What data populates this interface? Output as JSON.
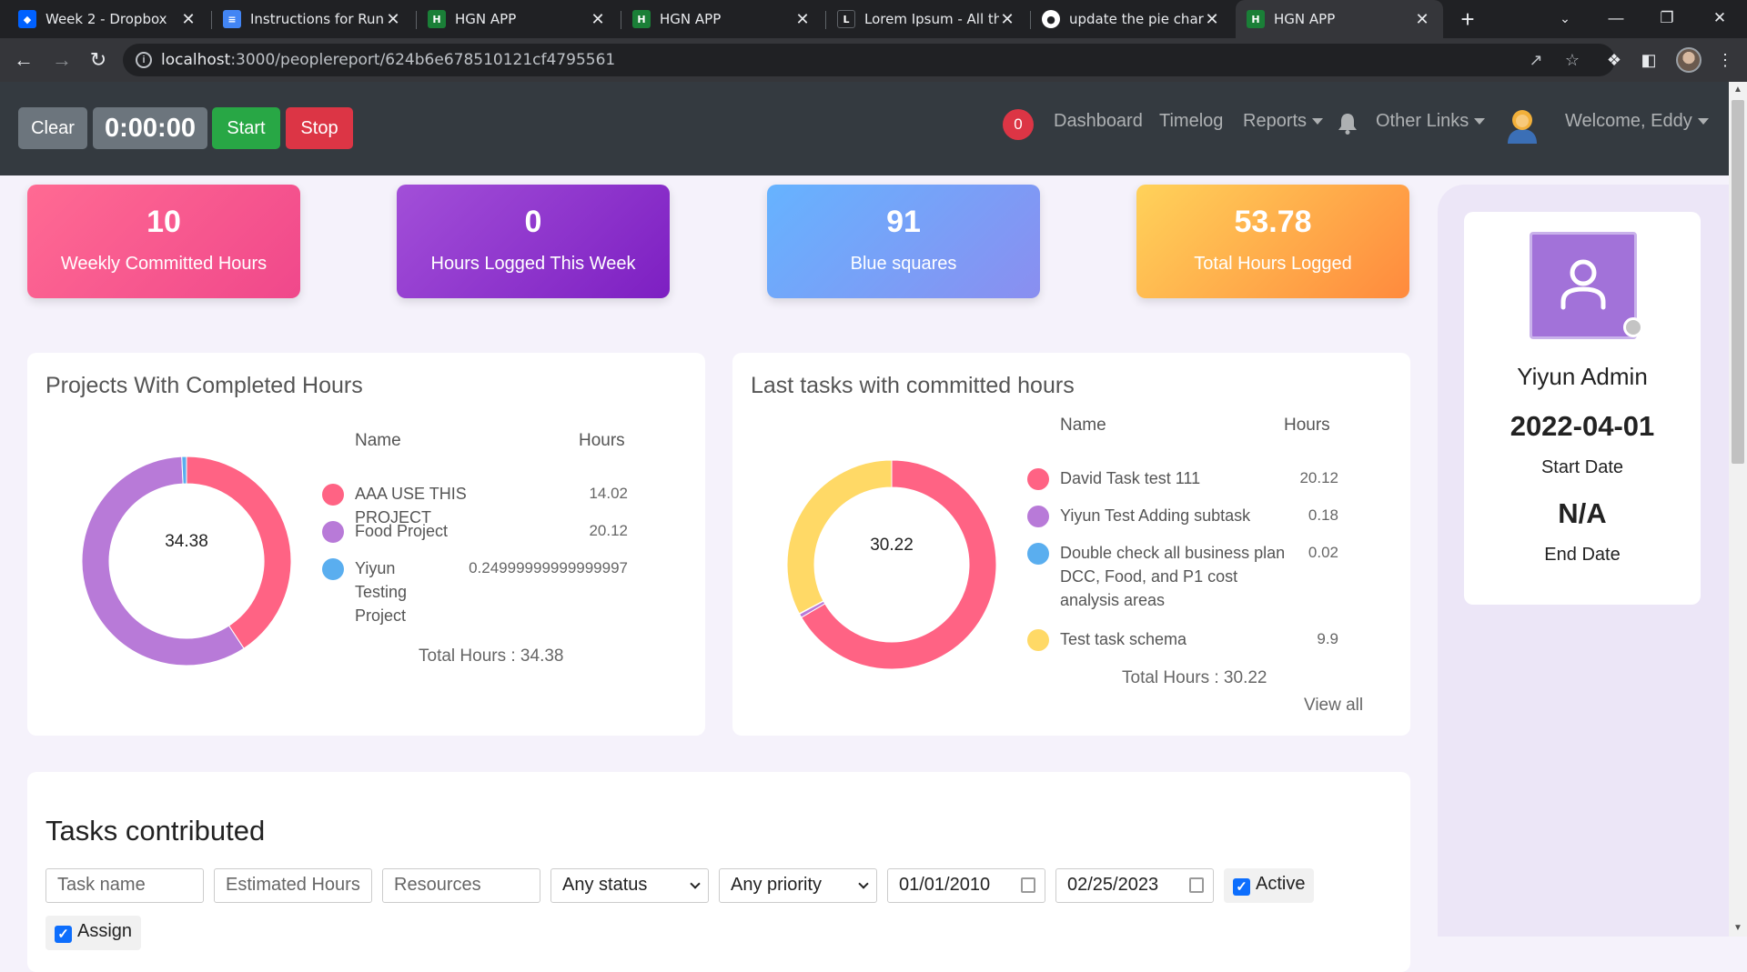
{
  "browser": {
    "tabs": [
      {
        "title": "Week 2 - Dropbox",
        "favicon": "dropbox-icon",
        "color": "#0061ff"
      },
      {
        "title": "Instructions for Runni",
        "favicon": "google-docs-icon",
        "color": "#4285f4"
      },
      {
        "title": "HGN APP",
        "favicon": "hgn-icon",
        "color": "#1a7f37"
      },
      {
        "title": "HGN APP",
        "favicon": "hgn-icon",
        "color": "#1a7f37"
      },
      {
        "title": "Lorem Ipsum - All the",
        "favicon": "lipsum-icon",
        "color": "#202124"
      },
      {
        "title": "update the pie chart c",
        "favicon": "github-icon",
        "color": "#ffffff"
      },
      {
        "title": "HGN APP",
        "favicon": "hgn-icon",
        "color": "#1a7f37"
      }
    ],
    "url_host": "localhost",
    "url_path": ":3000/peoplereport/624b6e678510121cf4795561"
  },
  "navbar": {
    "clear_label": "Clear",
    "timer": "0:00:00",
    "start_label": "Start",
    "stop_label": "Stop",
    "notification_count": "0",
    "links": {
      "dashboard": "Dashboard",
      "timelog": "Timelog",
      "reports": "Reports",
      "other_links": "Other Links",
      "welcome": "Welcome, Eddy"
    }
  },
  "stats": [
    {
      "value": "10",
      "label": "Weekly Committed Hours"
    },
    {
      "value": "0",
      "label": "Hours Logged This Week"
    },
    {
      "value": "91",
      "label": "Blue squares"
    },
    {
      "value": "53.78",
      "label": "Total Hours Logged"
    }
  ],
  "projects_panel": {
    "title": "Projects With Completed Hours",
    "col_name": "Name",
    "col_hours": "Hours",
    "center": "34.38",
    "items": [
      {
        "name": "AAA USE THIS PROJECT",
        "hours": "14.02",
        "value": 14.02,
        "color": "#ff6384"
      },
      {
        "name": "Food Project",
        "hours": "20.12",
        "value": 20.12,
        "color": "#b87ad8"
      },
      {
        "name": "Yiyun Testing Project",
        "hours": "0.24999999999999997",
        "value": 0.25,
        "color": "#5aaeef"
      }
    ],
    "total": "Total Hours : 34.38"
  },
  "tasks_panel": {
    "title": "Last tasks with committed hours",
    "col_name": "Name",
    "col_hours": "Hours",
    "center": "30.22",
    "items": [
      {
        "name": "David Task test 111",
        "hours": "20.12",
        "value": 20.12,
        "color": "#ff6384"
      },
      {
        "name": "Yiyun Test Adding subtask",
        "hours": "0.18",
        "value": 0.18,
        "color": "#b87ad8"
      },
      {
        "name": "Double check all business plan DCC, Food, and P1 cost analysis areas",
        "hours": "0.02",
        "value": 0.02,
        "color": "#5aaeef"
      },
      {
        "name": "Test task schema",
        "hours": "9.9",
        "value": 9.9,
        "color": "#ffd966"
      }
    ],
    "total": "Total Hours : 30.22",
    "view_all": "View all"
  },
  "profile": {
    "name": "Yiyun Admin",
    "start_date": "2022-04-01",
    "start_label": "Start Date",
    "end_date": "N/A",
    "end_label": "End Date"
  },
  "tasks_contributed": {
    "title": "Tasks contributed",
    "task_name_placeholder": "Task name",
    "estimated_hours_placeholder": "Estimated Hours",
    "resources_placeholder": "Resources",
    "status_value": "Any status",
    "priority_value": "Any priority",
    "from_date": "01/01/2010",
    "to_date": "02/25/2023",
    "active_label": "Active",
    "assign_label": "Assign"
  },
  "colors": {
    "navbar": "#343a40",
    "start": "#28a745",
    "stop": "#dc3545",
    "clear": "#6c757d"
  }
}
